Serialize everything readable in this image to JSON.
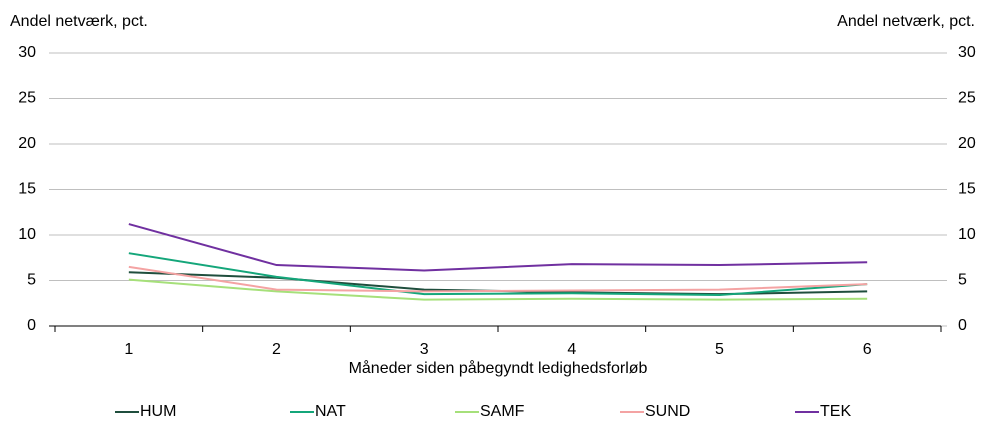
{
  "chart_data": {
    "type": "line",
    "y_label": "Andel netværk, pct.",
    "y2_label": "Andel netværk, pct.",
    "x_label": "Måneder siden påbegyndt ledighedsforløb",
    "categories": [
      "1",
      "2",
      "3",
      "4",
      "5",
      "6"
    ],
    "series": [
      {
        "name": "HUM",
        "color": "#1f4e3d",
        "values": [
          5.9,
          5.3,
          4.0,
          3.7,
          3.5,
          3.8
        ]
      },
      {
        "name": "NAT",
        "color": "#14a67a",
        "values": [
          8.0,
          5.4,
          3.5,
          3.6,
          3.4,
          4.6
        ]
      },
      {
        "name": "SAMF",
        "color": "#a6e07a",
        "values": [
          5.1,
          3.8,
          2.9,
          3.0,
          2.9,
          3.0
        ]
      },
      {
        "name": "SUND",
        "color": "#f4a3a3",
        "values": [
          6.5,
          4.0,
          3.8,
          3.9,
          4.0,
          4.6
        ]
      },
      {
        "name": "TEK",
        "color": "#7030a0",
        "values": [
          11.2,
          6.7,
          6.1,
          6.8,
          6.7,
          7.0
        ]
      }
    ],
    "ylim": [
      0,
      30
    ],
    "yticks": [
      0,
      5,
      10,
      15,
      20,
      25,
      30
    ],
    "y2lim": [
      0,
      30
    ],
    "y2ticks": [
      0,
      5,
      10,
      15,
      20,
      25,
      30
    ],
    "grid": true,
    "legend": "bottom"
  }
}
